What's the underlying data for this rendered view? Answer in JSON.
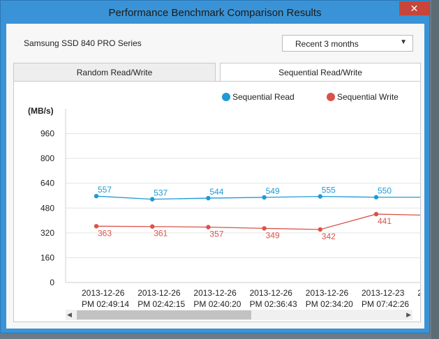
{
  "window": {
    "title": "Performance Benchmark Comparison Results",
    "close_label": "✕"
  },
  "device_name": "Samsung SSD 840 PRO Series",
  "range_select": {
    "value": "Recent 3 months"
  },
  "tabs": [
    {
      "label": "Random Read/Write",
      "active": false
    },
    {
      "label": "Sequential Read/Write",
      "active": true
    }
  ],
  "icons": {
    "dropdown": "caret-down-icon",
    "scroll_left": "arrow-left-icon",
    "scroll_right": "arrow-right-icon"
  },
  "chart_data": {
    "type": "line",
    "ylabel": "(MB/s)",
    "ylim": [
      0,
      1120
    ],
    "yticks": [
      0,
      160,
      320,
      480,
      640,
      800,
      960
    ],
    "x": [
      [
        "2013-12-26",
        "PM 02:49:14"
      ],
      [
        "2013-12-26",
        "PM 02:42:15"
      ],
      [
        "2013-12-26",
        "PM 02:40:20"
      ],
      [
        "2013-12-26",
        "PM 02:36:43"
      ],
      [
        "2013-12-26",
        "PM 02:34:20"
      ],
      [
        "2013-12-23",
        "PM 07:42:26"
      ],
      [
        "2",
        ""
      ]
    ],
    "series": [
      {
        "name": "Sequential Read",
        "color": "#1e9ad6",
        "values": [
          557,
          537,
          544,
          549,
          555,
          550,
          550
        ]
      },
      {
        "name": "Sequential Write",
        "color": "#d9534a",
        "values": [
          363,
          361,
          357,
          349,
          342,
          441,
          433
        ]
      }
    ],
    "grid": true,
    "legend": "top-right"
  }
}
